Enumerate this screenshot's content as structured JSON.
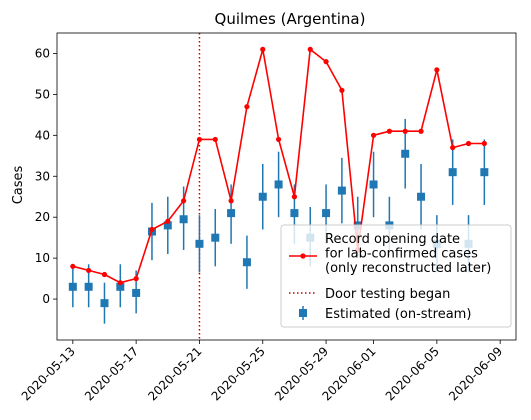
{
  "chart_data": {
    "type": "line",
    "title": "Quilmes (Argentina)",
    "ylabel": "Cases",
    "xlabel": "",
    "ylim": [
      -10,
      65
    ],
    "xlim": [
      "2020-05-12",
      "2020-06-10"
    ],
    "yticks": [
      0,
      10,
      20,
      30,
      40,
      50,
      60
    ],
    "xticks": [
      "2020-05-13",
      "2020-05-17",
      "2020-05-21",
      "2020-05-25",
      "2020-05-29",
      "2020-06-01",
      "2020-06-05",
      "2020-06-09"
    ],
    "grid": false,
    "legend_position": "lower-right",
    "vline": {
      "x": "2020-05-21",
      "name": "Door testing began",
      "color": "#c00000",
      "style": "dotted"
    },
    "series": [
      {
        "name": "Record opening date for lab-confirmed cases (only reconstructed later)",
        "legend_lines": [
          "Record opening date",
          "for lab-confirmed cases",
          "(only reconstructed later)"
        ],
        "kind": "line",
        "color": "#ff0000",
        "x": [
          "2020-05-13",
          "2020-05-14",
          "2020-05-15",
          "2020-05-16",
          "2020-05-17",
          "2020-05-18",
          "2020-05-19",
          "2020-05-20",
          "2020-05-21",
          "2020-05-22",
          "2020-05-23",
          "2020-05-24",
          "2020-05-25",
          "2020-05-26",
          "2020-05-27",
          "2020-05-28",
          "2020-05-29",
          "2020-05-30",
          "2020-05-31",
          "2020-06-01",
          "2020-06-02",
          "2020-06-03",
          "2020-06-04",
          "2020-06-05",
          "2020-06-06",
          "2020-06-07",
          "2020-06-08"
        ],
        "y": [
          8,
          7,
          6,
          4,
          5,
          17,
          19,
          24,
          39,
          39,
          24,
          47,
          61,
          39,
          25,
          61,
          58,
          51,
          12,
          40,
          41,
          41,
          41,
          56,
          37,
          38,
          38
        ]
      },
      {
        "name": "Estimated (on-stream)",
        "kind": "errorbar",
        "color": "#1f77b4",
        "x": [
          "2020-05-13",
          "2020-05-14",
          "2020-05-15",
          "2020-05-16",
          "2020-05-17",
          "2020-05-18",
          "2020-05-19",
          "2020-05-20",
          "2020-05-21",
          "2020-05-22",
          "2020-05-23",
          "2020-05-24",
          "2020-05-25",
          "2020-05-26",
          "2020-05-27",
          "2020-05-28",
          "2020-05-29",
          "2020-05-30",
          "2020-05-31",
          "2020-06-01",
          "2020-06-02",
          "2020-06-03",
          "2020-06-04",
          "2020-06-05",
          "2020-06-06",
          "2020-06-07",
          "2020-06-08"
        ],
        "y": [
          3,
          3,
          -1,
          3,
          1.5,
          16.5,
          18,
          19.5,
          13.5,
          15,
          21,
          9,
          25,
          28,
          21,
          15,
          21,
          26.5,
          18,
          28,
          18,
          35.5,
          25,
          13.5,
          31,
          13.5,
          31
        ],
        "err_low": [
          -2,
          -2,
          -6,
          -2,
          -3.5,
          9.5,
          11,
          12,
          6.5,
          8,
          13.5,
          2.5,
          17,
          20,
          13.5,
          8,
          13.5,
          18.5,
          10.5,
          20,
          10.5,
          27,
          17,
          6.5,
          23,
          6.5,
          23
        ],
        "err_high": [
          8,
          8.5,
          4,
          8.5,
          7,
          23.5,
          25,
          27.5,
          20.5,
          22,
          28,
          15.5,
          33,
          36,
          28,
          22.5,
          28,
          34.5,
          25,
          36,
          25,
          44,
          33,
          20.5,
          39,
          20.5,
          39
        ]
      }
    ]
  }
}
